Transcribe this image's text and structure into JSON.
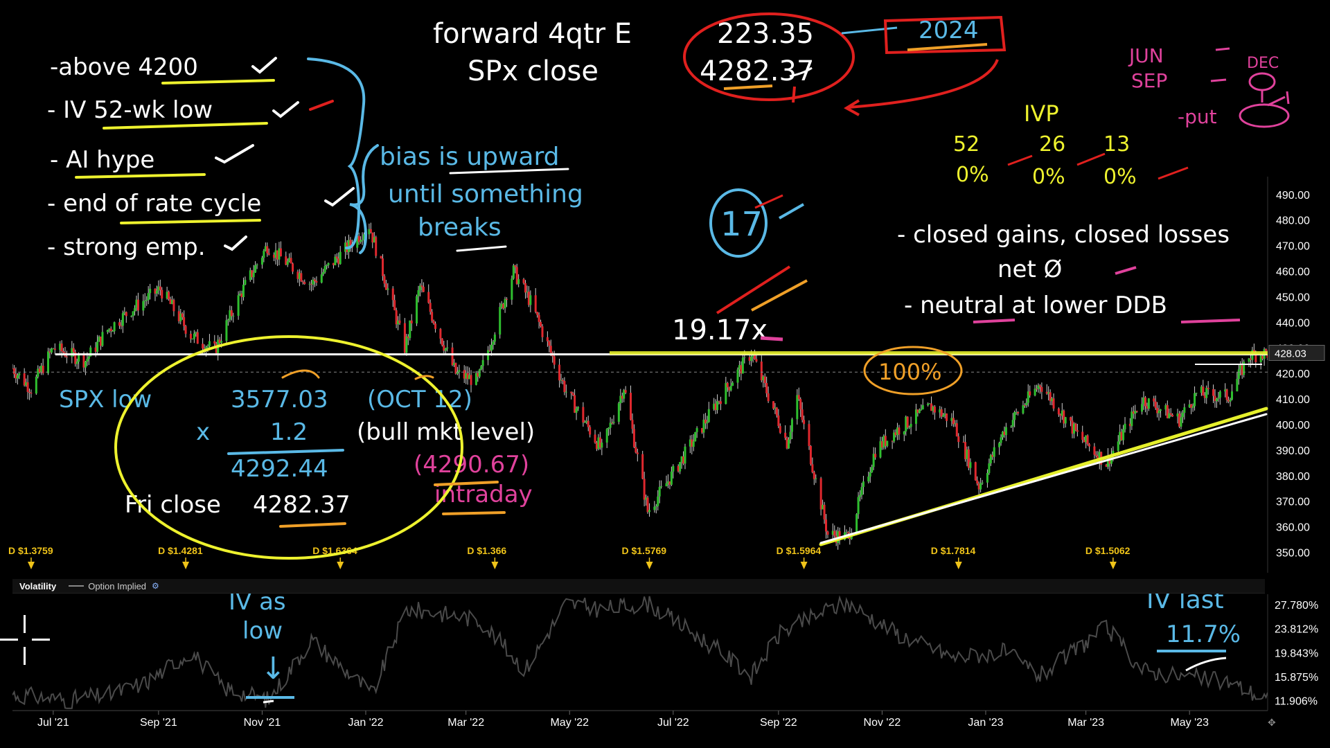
{
  "chart_data": [
    {
      "type": "candlestick",
      "title": "",
      "y_axis_side": "right",
      "ylim": [
        342,
        497
      ],
      "y_ticks": [
        "490.00",
        "480.00",
        "470.00",
        "460.00",
        "450.00",
        "440.00",
        "430.00",
        "420.00",
        "410.00",
        "400.00",
        "390.00",
        "380.00",
        "370.00",
        "360.00",
        "350.00"
      ],
      "y_tick_values": [
        490,
        480,
        470,
        460,
        450,
        440,
        430,
        420,
        410,
        400,
        390,
        380,
        370,
        360,
        350
      ],
      "last_price_label": "428.03",
      "last_price": 428.03,
      "resistance_level": 428.0,
      "x_labels": [
        "Jul '21",
        "Sep '21",
        "Nov '21",
        "Jan '22",
        "Mar '22",
        "May '22",
        "Jul '22",
        "Sep '22",
        "Nov '22",
        "Jan '23",
        "Mar '23",
        "May '23"
      ],
      "x_label_dates": [
        "2021-07-01",
        "2021-09-01",
        "2021-11-01",
        "2022-01-01",
        "2022-03-01",
        "2022-05-01",
        "2022-07-01",
        "2022-09-01",
        "2022-11-01",
        "2023-01-01",
        "2023-03-01",
        "2023-05-01"
      ],
      "x_range": [
        "2021-06-07",
        "2023-06-16"
      ],
      "dividend_markers": [
        {
          "date": "2021-06-18",
          "label": "D $1.3759"
        },
        {
          "date": "2021-09-17",
          "label": "D $1.4281"
        },
        {
          "date": "2021-12-17",
          "label": "D $1.6364"
        },
        {
          "date": "2022-03-18",
          "label": "D $1.366"
        },
        {
          "date": "2022-06-17",
          "label": "D $1.5769"
        },
        {
          "date": "2022-09-16",
          "label": "D $1.5964"
        },
        {
          "date": "2022-12-16",
          "label": "D $1.7814"
        },
        {
          "date": "2023-03-17",
          "label": "D $1.5062"
        }
      ],
      "series": [
        {
          "close_path": [
            [
              "2021-06-07",
              422
            ],
            [
              "2021-06-18",
              414
            ],
            [
              "2021-07-01",
              430
            ],
            [
              "2021-07-20",
              425
            ],
            [
              "2021-08-02",
              437
            ],
            [
              "2021-08-16",
              445
            ],
            [
              "2021-09-02",
              453
            ],
            [
              "2021-09-20",
              435
            ],
            [
              "2021-10-04",
              429
            ],
            [
              "2021-10-20",
              452
            ],
            [
              "2021-11-04",
              470
            ],
            [
              "2021-11-30",
              455
            ],
            [
              "2021-12-15",
              465
            ],
            [
              "2022-01-03",
              478
            ],
            [
              "2022-01-24",
              430
            ],
            [
              "2022-02-02",
              454
            ],
            [
              "2022-02-23",
              420
            ],
            [
              "2022-03-08",
              417
            ],
            [
              "2022-03-29",
              460
            ],
            [
              "2022-04-08",
              448
            ],
            [
              "2022-04-29",
              413
            ],
            [
              "2022-05-20",
              390
            ],
            [
              "2022-06-02",
              415
            ],
            [
              "2022-06-16",
              366
            ],
            [
              "2022-07-01",
              381
            ],
            [
              "2022-07-29",
              411
            ],
            [
              "2022-08-16",
              428
            ],
            [
              "2022-09-06",
              393
            ],
            [
              "2022-09-12",
              411
            ],
            [
              "2022-09-30",
              357
            ],
            [
              "2022-10-12",
              356
            ],
            [
              "2022-10-28",
              390
            ],
            [
              "2022-11-10",
              398
            ],
            [
              "2022-11-30",
              407
            ],
            [
              "2022-12-13",
              401
            ],
            [
              "2022-12-28",
              376
            ],
            [
              "2023-01-12",
              398
            ],
            [
              "2023-02-02",
              416
            ],
            [
              "2023-02-24",
              396
            ],
            [
              "2023-03-13",
              385
            ],
            [
              "2023-04-03",
              410
            ],
            [
              "2023-04-25",
              402
            ],
            [
              "2023-05-05",
              412
            ],
            [
              "2023-05-24",
              411
            ],
            [
              "2023-06-05",
              427
            ],
            [
              "2023-06-16",
              428
            ]
          ]
        }
      ]
    },
    {
      "type": "line",
      "title": "Volatility",
      "legend": "Option Implied",
      "y_ticks": [
        "27.780%",
        "23.812%",
        "19.843%",
        "15.875%",
        "11.906%"
      ],
      "y_tick_values": [
        27.78,
        23.812,
        19.843,
        15.875,
        11.906
      ],
      "ylim": [
        10.5,
        29.5
      ],
      "series": [
        {
          "name": "Option Implied",
          "values_path": [
            [
              "2021-06-07",
              13
            ],
            [
              "2021-07-10",
              12
            ],
            [
              "2021-08-05",
              13
            ],
            [
              "2021-08-25",
              15
            ],
            [
              "2021-09-20",
              20
            ],
            [
              "2021-10-10",
              14
            ],
            [
              "2021-11-05",
              12
            ],
            [
              "2021-11-30",
              22
            ],
            [
              "2021-12-20",
              17
            ],
            [
              "2022-01-05",
              13
            ],
            [
              "2022-01-25",
              27
            ],
            [
              "2022-02-24",
              26
            ],
            [
              "2022-03-10",
              25
            ],
            [
              "2022-04-05",
              17
            ],
            [
              "2022-04-29",
              28
            ],
            [
              "2022-05-20",
              27
            ],
            [
              "2022-06-16",
              28
            ],
            [
              "2022-07-29",
              20
            ],
            [
              "2022-08-16",
              16
            ],
            [
              "2022-09-02",
              23
            ],
            [
              "2022-09-30",
              27
            ],
            [
              "2022-10-12",
              28
            ],
            [
              "2022-11-10",
              23
            ],
            [
              "2022-12-13",
              19
            ],
            [
              "2023-01-12",
              20
            ],
            [
              "2023-02-02",
              16
            ],
            [
              "2023-03-13",
              24
            ],
            [
              "2023-04-03",
              17
            ],
            [
              "2023-04-25",
              16
            ],
            [
              "2023-05-24",
              15
            ],
            [
              "2023-06-16",
              12
            ]
          ]
        }
      ]
    }
  ],
  "ui": {
    "vol_title": "Volatility",
    "vol_legend": "Option Implied",
    "scroll_glyph": "✥"
  },
  "annotations": {
    "header_line1_label": "forward 4qtr E",
    "header_line1_value": "223.35",
    "header_line2_label": "SPx close",
    "header_line2_value": "4282.37",
    "year_box": "2024",
    "corner_jun": "JUN",
    "corner_sep": "SEP",
    "corner_dec": "DEC",
    "corner_put": "-put",
    "iv_rank_title": "IVP",
    "iv_rank_periods": [
      "52",
      "26",
      "13"
    ],
    "iv_rank_values": [
      "0%",
      "0%",
      "0%"
    ],
    "checklist": [
      "-above 4200",
      "- IV 52-wk low",
      "- AI hype",
      "- end of rate cycle",
      "- strong emp."
    ],
    "bias_lines": [
      "bias is upward",
      "until something",
      "breaks"
    ],
    "circled_17": "17",
    "pe_note": "19.17x",
    "closed_note": "- closed gains, closed losses",
    "net_note": "net Ø",
    "neutral_note": "- neutral at lower DDB",
    "pct_circle": "100%",
    "spx_low_label": "SPX low",
    "spx_low_value": "3577.03",
    "spx_low_date": "(OCT 12)",
    "multiplier_sign": "x",
    "multiplier": "1.2",
    "bull_note": "(bull mkt level)",
    "bull_level": "4292.44",
    "intraday_value": "(4290.67)",
    "intraday_label": "intraday",
    "fri_close_label": "Fri close",
    "fri_close_value": "4282.37",
    "iv_low_line1": "IV as",
    "iv_low_line2": "low",
    "iv_low_arrow": "↓",
    "iv_last_label": "IV last",
    "iv_last_value": "11.7%"
  },
  "colors": {
    "background": "#000000",
    "up_candle": "#2fbf2f",
    "down_candle": "#e0282e",
    "axis_text": "#ffffff",
    "dividend_text": "#f0c419",
    "resistance_white": "#ffffff",
    "resistance_yellow": "#e6f02c",
    "ink_white": "#ffffff",
    "ink_yellow": "#eef22e",
    "ink_blue": "#5ab9e6",
    "ink_red": "#e0201e",
    "ink_pink": "#e0429c",
    "ink_orange": "#f0a028",
    "vol_line": "#4a4a4a"
  }
}
